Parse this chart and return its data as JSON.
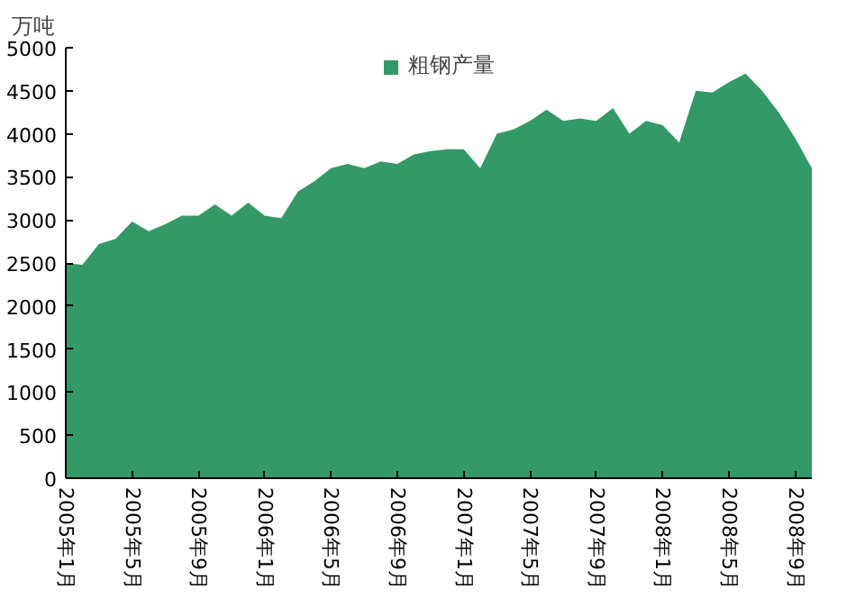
{
  "chart_data": {
    "type": "area",
    "ylabel": "万吨",
    "legend": "top",
    "categories": [
      "2005年1月",
      null,
      null,
      null,
      "2005年5月",
      null,
      null,
      null,
      "2005年9月",
      null,
      null,
      null,
      "2006年1月",
      null,
      null,
      null,
      "2006年5月",
      null,
      null,
      null,
      "2006年9月",
      null,
      null,
      null,
      "2007年1月",
      null,
      null,
      null,
      "2007年5月",
      null,
      null,
      null,
      "2007年9月",
      null,
      null,
      null,
      "2008年1月",
      null,
      null,
      null,
      "2008年5月",
      null,
      null,
      null,
      "2008年9月",
      null
    ],
    "series": [
      {
        "name": "粗钢产量",
        "color": "#339966",
        "values": [
          2500,
          2480,
          2720,
          2780,
          2980,
          2870,
          2950,
          3050,
          3050,
          3180,
          3050,
          3200,
          3050,
          3020,
          3330,
          3450,
          3600,
          3650,
          3600,
          3680,
          3650,
          3760,
          3800,
          3820,
          3820,
          3600,
          4000,
          4050,
          4150,
          4280,
          4150,
          4180,
          4150,
          4300,
          4000,
          4150,
          4100,
          3900,
          4500,
          4480,
          4600,
          4700,
          4500,
          4250,
          3950,
          3600
        ]
      }
    ],
    "ylim": [
      0,
      5000
    ],
    "yticks": [
      0,
      500,
      1000,
      1500,
      2000,
      2500,
      3000,
      3500,
      4000,
      4500,
      5000
    ],
    "grid": false
  }
}
